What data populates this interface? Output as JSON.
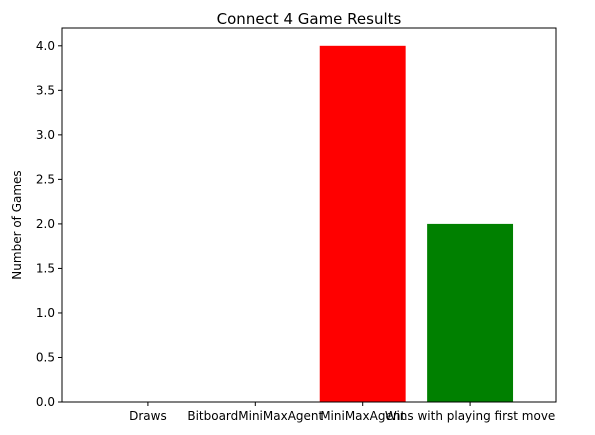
{
  "chart_data": {
    "type": "bar",
    "title": "Connect 4 Game Results",
    "xlabel": "",
    "ylabel": "Number of Games",
    "categories": [
      "Draws",
      "BitboardMiniMaxAgent",
      "MiniMaxAgent",
      "Wins with playing first move"
    ],
    "values": [
      0,
      0,
      4,
      2
    ],
    "colors": [
      "#1f77b4",
      "#0000ff",
      "#ff0000",
      "#008000"
    ],
    "ylim": [
      0,
      4.2
    ],
    "yticks": [
      0.0,
      0.5,
      1.0,
      1.5,
      2.0,
      2.5,
      3.0,
      3.5,
      4.0
    ],
    "ytick_labels": [
      "0.0",
      "0.5",
      "1.0",
      "1.5",
      "2.0",
      "2.5",
      "3.0",
      "3.5",
      "4.0"
    ],
    "grid": false,
    "legend": "none"
  }
}
